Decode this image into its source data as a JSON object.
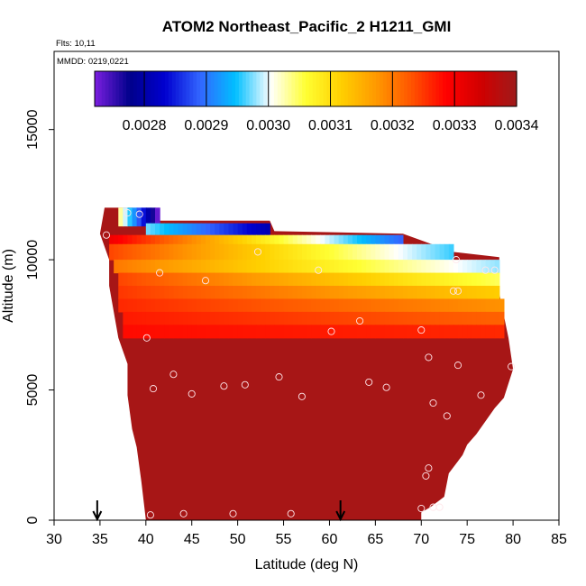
{
  "chart_data": {
    "type": "heatmap",
    "title": "ATOM2 Northeast_Pacific_2 H1211_GMI",
    "flights_label": "Flts: 10,11",
    "mmdd_label": "MMDD: 0219,0221",
    "xlabel": "Latitude (deg N)",
    "ylabel": "Altitude (m)",
    "xlim": [
      30,
      85
    ],
    "ylim": [
      0,
      18000
    ],
    "xticks": [
      "30",
      "35",
      "40",
      "45",
      "50",
      "55",
      "60",
      "65",
      "70",
      "75",
      "80",
      "85"
    ],
    "yticks": [
      "0",
      "5000",
      "10000",
      "15000"
    ],
    "colorbar": {
      "vmin": 0.00272,
      "vmax": 0.0034,
      "tick_values": [
        0.0028,
        0.0029,
        0.003,
        0.0031,
        0.0032,
        0.0033,
        0.0034
      ],
      "tick_labels": [
        "0.0028",
        "0.0029",
        "0.0030",
        "0.0031",
        "0.0032",
        "0.0033",
        "0.0034"
      ],
      "stops": [
        "#7B1FE0",
        "#00008B",
        "#0000D0",
        "#3366FF",
        "#00BFFF",
        "#FFFFFF",
        "#FFFF33",
        "#FFD000",
        "#FF9900",
        "#FF5500",
        "#FF0000",
        "#D00000",
        "#9E1B1B"
      ]
    },
    "background_value": 0.00339,
    "layers": [
      {
        "alt_range": [
          11300,
          12000
        ],
        "lat_range": [
          37,
          41.5
        ],
        "value_start": 0.00303,
        "value_end": 0.00273
      },
      {
        "alt_range": [
          10950,
          11400
        ],
        "lat_range": [
          40,
          53.5
        ],
        "value_start": 0.00297,
        "value_end": 0.00281
      },
      {
        "alt_range": [
          10600,
          10950
        ],
        "lat_range": [
          36,
          68
        ],
        "value_start": 0.0033,
        "value_end": 0.00289
      },
      {
        "alt_range": [
          10000,
          10600
        ],
        "lat_range": [
          36,
          73.5
        ],
        "value_start": 0.00324,
        "value_end": 0.00296
      },
      {
        "alt_range": [
          9500,
          10000
        ],
        "lat_range": [
          36.5,
          78.5
        ],
        "value_start": 0.0032,
        "value_end": 0.00298
      },
      {
        "alt_range": [
          9000,
          9500
        ],
        "lat_range": [
          37,
          78.5
        ],
        "value_start": 0.00324,
        "value_end": 0.00305
      },
      {
        "alt_range": [
          8500,
          9000
        ],
        "lat_range": [
          37,
          78.5
        ],
        "value_start": 0.00325,
        "value_end": 0.00312
      },
      {
        "alt_range": [
          8000,
          8500
        ],
        "lat_range": [
          37,
          79
        ],
        "value_start": 0.00326,
        "value_end": 0.00318
      },
      {
        "alt_range": [
          7500,
          8000
        ],
        "lat_range": [
          37.5,
          79
        ],
        "value_start": 0.00327,
        "value_end": 0.00322
      },
      {
        "alt_range": [
          7000,
          7500
        ],
        "lat_range": [
          37.5,
          79
        ],
        "value_start": 0.00328,
        "value_end": 0.00326
      }
    ],
    "envelope": [
      [
        35.5,
        12000
      ],
      [
        38.5,
        12000
      ],
      [
        41.5,
        11500
      ],
      [
        53.5,
        11500
      ],
      [
        54,
        11100
      ],
      [
        68,
        11000
      ],
      [
        73.5,
        10300
      ],
      [
        78.5,
        10100
      ],
      [
        78.5,
        8700
      ],
      [
        79.5,
        7000
      ],
      [
        80,
        5800
      ],
      [
        79,
        4700
      ],
      [
        78,
        4300
      ],
      [
        76,
        3300
      ],
      [
        75,
        2900
      ],
      [
        74.5,
        2500
      ],
      [
        73,
        1800
      ],
      [
        72.5,
        900
      ],
      [
        71,
        500
      ],
      [
        70,
        300
      ],
      [
        70,
        0
      ],
      [
        40,
        0
      ],
      [
        39.5,
        1500
      ],
      [
        39,
        2800
      ],
      [
        38.5,
        3500
      ],
      [
        38,
        4800
      ],
      [
        38,
        6000
      ],
      [
        37.5,
        6500
      ],
      [
        37,
        7000
      ],
      [
        36.5,
        8000
      ],
      [
        36,
        9000
      ],
      [
        36,
        10000
      ],
      [
        35,
        11000
      ]
    ],
    "obs_points": [
      [
        38,
        11800
      ],
      [
        39.3,
        11750
      ],
      [
        35.7,
        10950
      ],
      [
        52.2,
        10300
      ],
      [
        73.8,
        10000
      ],
      [
        41.5,
        9500
      ],
      [
        46.5,
        9200
      ],
      [
        58.8,
        9600
      ],
      [
        77,
        9600
      ],
      [
        78,
        9600
      ],
      [
        73.5,
        8800
      ],
      [
        74,
        8800
      ],
      [
        63.3,
        7650
      ],
      [
        60.2,
        7250
      ],
      [
        70,
        7300
      ],
      [
        40.1,
        7000
      ],
      [
        70.8,
        6250
      ],
      [
        74,
        5950
      ],
      [
        79.8,
        5900
      ],
      [
        43,
        5600
      ],
      [
        54.5,
        5500
      ],
      [
        40.8,
        5050
      ],
      [
        45,
        4850
      ],
      [
        48.5,
        5150
      ],
      [
        50.8,
        5200
      ],
      [
        57,
        4750
      ],
      [
        64.3,
        5300
      ],
      [
        66.2,
        5100
      ],
      [
        76.5,
        4800
      ],
      [
        71.3,
        4500
      ],
      [
        72.8,
        4000
      ],
      [
        70.8,
        2000
      ],
      [
        70.5,
        1700
      ],
      [
        71.3,
        500
      ],
      [
        72,
        500
      ],
      [
        70,
        450
      ],
      [
        40.5,
        200
      ],
      [
        44.1,
        250
      ],
      [
        49.5,
        250
      ],
      [
        55.8,
        250
      ]
    ],
    "flight_markers_lat": [
      34.7,
      61.2
    ]
  }
}
